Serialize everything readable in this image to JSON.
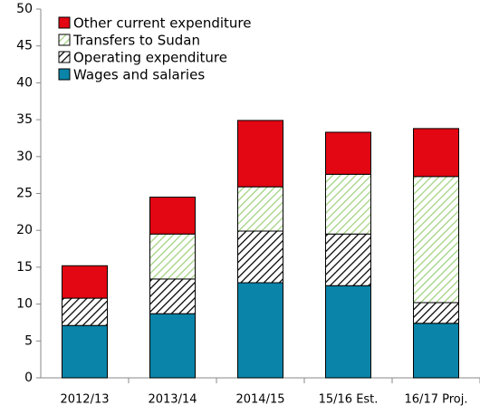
{
  "chart_data": {
    "type": "stacked_bar",
    "categories": [
      "2012/13",
      "2013/14",
      "2014/15",
      "15/16 Est.",
      "16/17 Proj."
    ],
    "series": [
      {
        "name": "Wages and salaries",
        "color": "#0a84a8",
        "pattern": "solid",
        "values": [
          7.1,
          8.7,
          12.9,
          12.5,
          7.4
        ]
      },
      {
        "name": "Operating expenditure",
        "color": "#000000",
        "pattern": "hatch",
        "values": [
          3.7,
          4.7,
          7.0,
          7.0,
          2.8
        ]
      },
      {
        "name": "Transfers to Sudan",
        "color": "#9fd27f",
        "pattern": "hatch",
        "values": [
          0,
          6.1,
          6.0,
          8.1,
          17.1
        ]
      },
      {
        "name": "Other current expenditure",
        "color": "#e30613",
        "pattern": "solid",
        "values": [
          4.4,
          5.0,
          9.0,
          5.7,
          6.5
        ]
      }
    ],
    "ylim": [
      0,
      50
    ],
    "yticks": [
      0,
      5,
      10,
      15,
      20,
      25,
      30,
      35,
      40,
      45,
      50
    ],
    "legend": "top-left"
  }
}
